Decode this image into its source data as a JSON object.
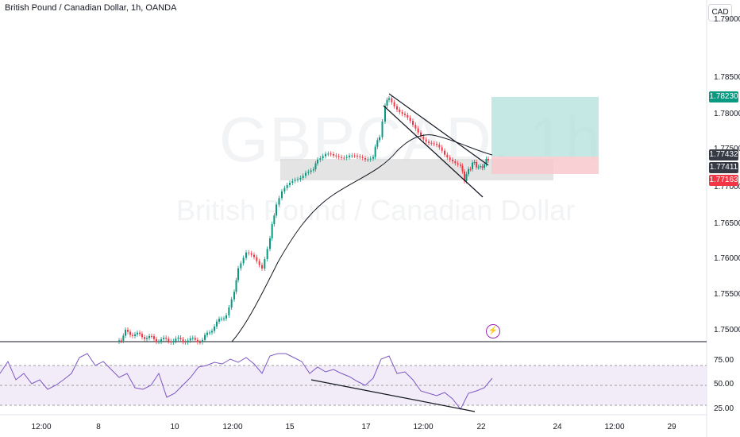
{
  "header": {
    "title": "British Pound / Canadian Dollar, 1h, OANDA",
    "currency": "CAD"
  },
  "watermark": {
    "symbol": "GBPCAD, 1h",
    "name": "British Pound / Canadian Dollar"
  },
  "price_axis": {
    "labels": [
      "1.79000",
      "1.78500",
      "1.78000",
      "1.77500",
      "1.77000",
      "1.76500",
      "1.76000",
      "1.75500",
      "1.75000"
    ]
  },
  "price_tags": [
    {
      "value": "1.78230",
      "color": "#089981"
    },
    {
      "value": "1.77432",
      "color": "#363a45"
    },
    {
      "value": "1.77411",
      "color": "#363a45"
    },
    {
      "value": "1.77163",
      "color": "#f23645"
    }
  ],
  "rsi_axis": {
    "labels": [
      "75.00",
      "50.00",
      "25.00"
    ]
  },
  "time_axis": {
    "labels": [
      "12:00",
      "8",
      "10",
      "12:00",
      "15",
      "17",
      "12:00",
      "22",
      "24",
      "12:00",
      "29"
    ]
  },
  "colors": {
    "up": "#089981",
    "down": "#f23645",
    "rsi": "#7e57c2",
    "ma": "#131722"
  },
  "icons": {
    "alert": "lightning-bolt-icon"
  }
}
